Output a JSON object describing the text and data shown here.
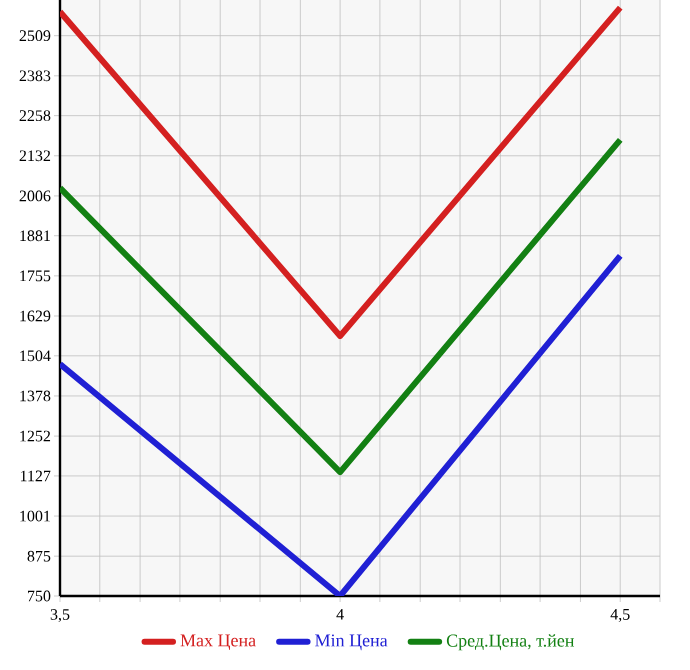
{
  "chart_data": {
    "type": "line",
    "x": [
      3.5,
      4,
      4.5
    ],
    "series": [
      {
        "name": "Max Цена",
        "color": "#d42020",
        "values": [
          2584,
          1566,
          2597
        ]
      },
      {
        "name": "Min Цена",
        "color": "#2020d4",
        "values": [
          1478,
          750,
          1818
        ]
      },
      {
        "name": "Сред.Цена, т.йен",
        "color": "#138013",
        "values": [
          2031,
          1139,
          2182
        ]
      }
    ],
    "xlim": [
      3.5,
      4.571
    ],
    "ylim": [
      750,
      2621
    ],
    "xticks": [
      {
        "value": 3.5,
        "label": "3,5"
      },
      {
        "value": 3.571,
        "label": null
      },
      {
        "value": 3.643,
        "label": null
      },
      {
        "value": 3.714,
        "label": null
      },
      {
        "value": 3.786,
        "label": null
      },
      {
        "value": 3.857,
        "label": null
      },
      {
        "value": 3.929,
        "label": null
      },
      4,
      {
        "value": 4.071,
        "label": null
      },
      {
        "value": 4.143,
        "label": null
      },
      {
        "value": 4.214,
        "label": null
      },
      {
        "value": 4.286,
        "label": null
      },
      {
        "value": 4.357,
        "label": null
      },
      {
        "value": 4.429,
        "label": null
      },
      {
        "value": 4.5,
        "label": "4,5"
      },
      {
        "value": 4.571,
        "label": null
      }
    ],
    "yticks": [
      750,
      875,
      1001,
      1127,
      1252,
      1378,
      1504,
      1629,
      1755,
      1881,
      2006,
      2132,
      2258,
      2383,
      2509
    ],
    "grid": true,
    "legend": "bottom",
    "marker": "none",
    "line_style": "solid"
  }
}
